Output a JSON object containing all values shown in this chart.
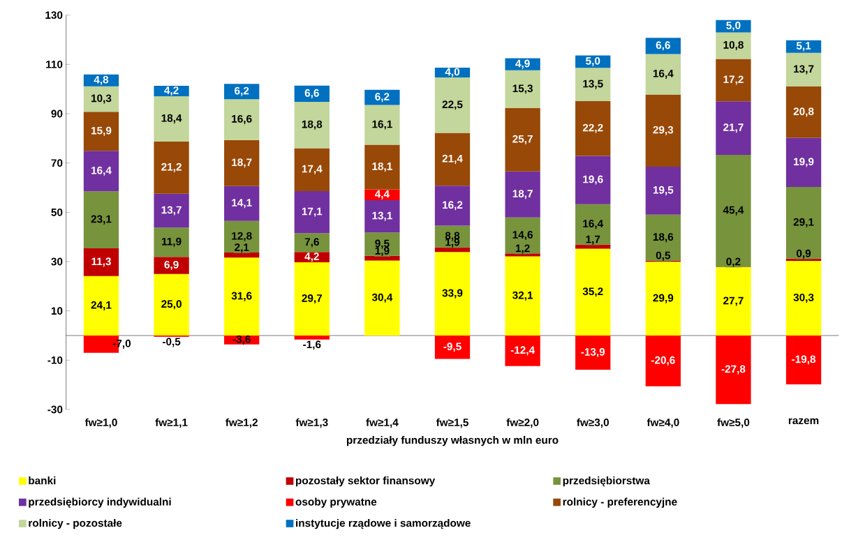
{
  "chart_data": {
    "type": "bar",
    "stacked": true,
    "xlabel": "przedziały funduszy własnych w mln euro",
    "categories": [
      "fw≥1,0",
      "fw≥1,1",
      "fw≥1,2",
      "fw≥1,3",
      "fw≥1,4",
      "fw≥1,5",
      "fw≥2,0",
      "fw≥3,0",
      "fw≥4,0",
      "fw≥5,0",
      "razem"
    ],
    "series": [
      {
        "name": "banki",
        "color": "#ffff00",
        "values": [
          24.1,
          25.0,
          31.6,
          29.7,
          30.4,
          33.9,
          32.1,
          35.2,
          29.9,
          27.7,
          30.3
        ],
        "value_labels": [
          "24,1",
          "25,0",
          "31,6",
          "29,7",
          "30,4",
          "33,9",
          "32,1",
          "35,2",
          "29,9",
          "27,7",
          "30,3"
        ]
      },
      {
        "name": "pozostały sektor finansowy",
        "color": "#c00000",
        "values": [
          11.3,
          6.9,
          2.1,
          4.2,
          1.9,
          1.9,
          1.2,
          1.7,
          0.5,
          0.2,
          0.9
        ],
        "value_labels": [
          "11,3",
          "6,9",
          "2,1",
          "4,2",
          "1,9",
          "1,9",
          "1,2",
          "1,7",
          "0,5",
          "0,2",
          "0,9"
        ]
      },
      {
        "name": "przedsiębiorstwa",
        "color": "#77933c",
        "values": [
          23.1,
          11.9,
          12.8,
          7.6,
          9.5,
          8.8,
          14.6,
          16.4,
          18.6,
          45.4,
          29.1
        ],
        "value_labels": [
          "23,1",
          "11,9",
          "12,8",
          "7,6",
          "9,5",
          "8,8",
          "14,6",
          "16,4",
          "18,6",
          "45,4",
          "29,1"
        ]
      },
      {
        "name": "przedsiębiorcy indywidualni",
        "color": "#7030a0",
        "values": [
          16.4,
          13.7,
          14.1,
          17.1,
          13.1,
          16.2,
          18.7,
          19.6,
          19.5,
          21.7,
          19.9
        ],
        "value_labels": [
          "16,4",
          "13,7",
          "14,1",
          "17,1",
          "13,1",
          "16,2",
          "18,7",
          "19,6",
          "19,5",
          "21,7",
          "19,9"
        ]
      },
      {
        "name": "osoby prywatne",
        "color": "#ff0000",
        "values": [
          -7.0,
          -0.5,
          -3.6,
          -1.6,
          4.4,
          -9.5,
          -12.4,
          -13.9,
          -20.6,
          -27.8,
          -19.8
        ],
        "value_labels": [
          "-7,0",
          "-0,5",
          "-3,6",
          "-1,6",
          "4,4",
          "-9,5",
          "-12,4",
          "-13,9",
          "-20,6",
          "-27,8",
          "-19,8"
        ]
      },
      {
        "name": "rolnicy - preferencyjne",
        "color": "#984807",
        "values": [
          15.9,
          21.2,
          18.7,
          17.4,
          18.1,
          21.4,
          25.7,
          22.2,
          29.3,
          17.2,
          20.8
        ],
        "value_labels": [
          "15,9",
          "21,2",
          "18,7",
          "17,4",
          "18,1",
          "21,4",
          "25,7",
          "22,2",
          "29,3",
          "17,2",
          "20,8"
        ]
      },
      {
        "name": "rolnicy - pozostałe",
        "color": "#c3d69b",
        "values": [
          10.3,
          18.4,
          16.6,
          18.8,
          16.1,
          22.5,
          15.3,
          13.5,
          16.4,
          10.8,
          13.7
        ],
        "value_labels": [
          "10,3",
          "18,4",
          "16,6",
          "18,8",
          "16,1",
          "22,5",
          "15,3",
          "13,5",
          "16,4",
          "10,8",
          "13,7"
        ]
      },
      {
        "name": "instytucje rządowe i samorządowe",
        "color": "#0070c0",
        "values": [
          4.8,
          4.2,
          6.2,
          6.6,
          6.2,
          4.0,
          4.9,
          5.0,
          6.6,
          5.0,
          5.1
        ],
        "value_labels": [
          "4,8",
          "4,2",
          "6,2",
          "6,6",
          "6,2",
          "4,0",
          "4,9",
          "5,0",
          "6,6",
          "5,0",
          "5,1"
        ]
      }
    ],
    "ylim": [
      -30,
      130
    ],
    "yticks": [
      -30,
      -10,
      10,
      30,
      50,
      70,
      90,
      110,
      130
    ],
    "grid": false,
    "legend": "bottom"
  }
}
